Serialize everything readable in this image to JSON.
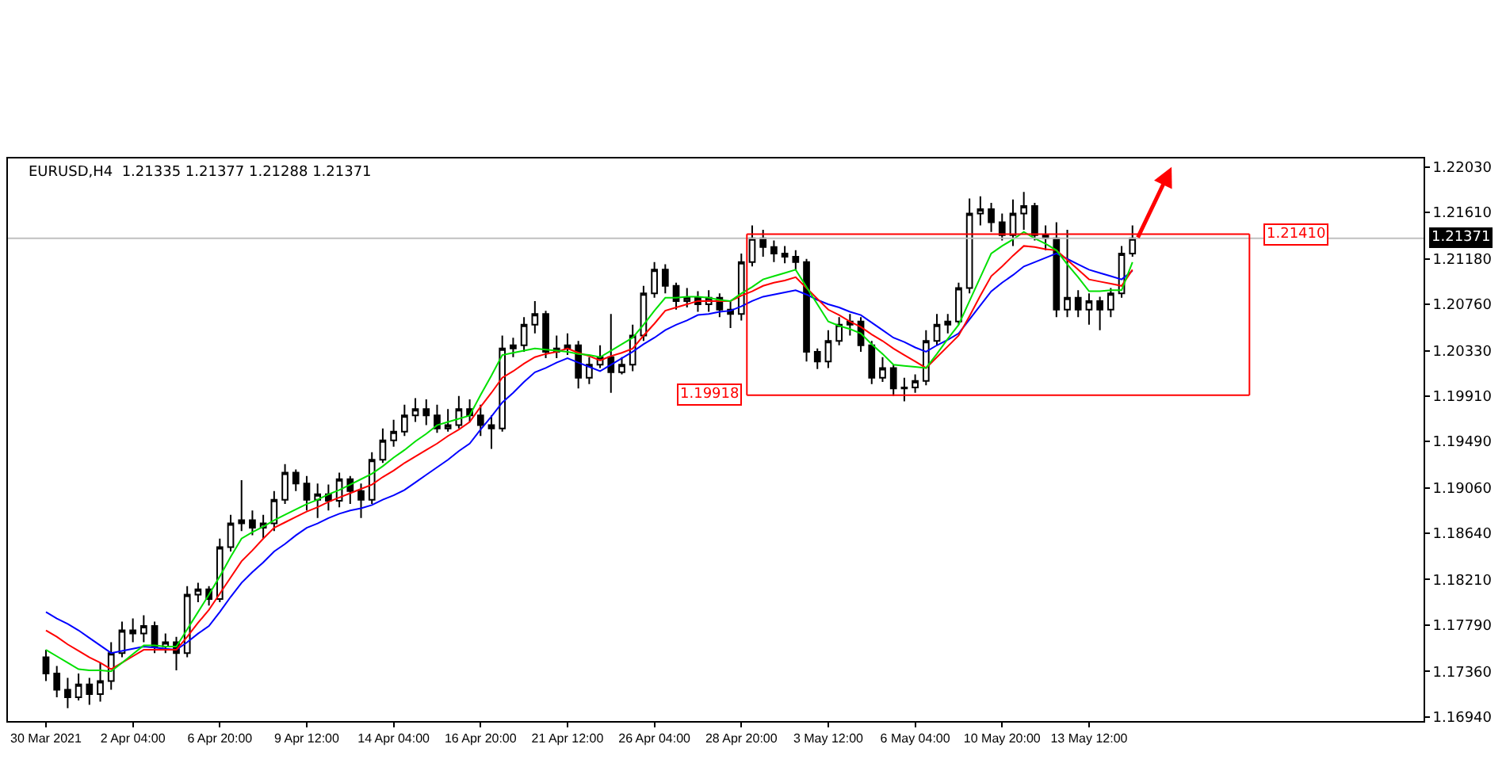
{
  "chart_data": {
    "type": "candlestick",
    "title": "EURUSD,H4  1.21335 1.21377 1.21288 1.21371",
    "categories": [
      "30 Mar 2021",
      null,
      null,
      null,
      null,
      null,
      null,
      null,
      "2 Apr 04:00",
      null,
      null,
      null,
      null,
      null,
      null,
      null,
      "6 Apr 20:00",
      null,
      null,
      null,
      null,
      null,
      null,
      null,
      "9 Apr 12:00",
      null,
      null,
      null,
      null,
      null,
      null,
      null,
      "14 Apr 04:00",
      null,
      null,
      null,
      null,
      null,
      null,
      null,
      "16 Apr 20:00",
      null,
      null,
      null,
      null,
      null,
      null,
      null,
      "21 Apr 12:00",
      null,
      null,
      null,
      null,
      null,
      null,
      null,
      "26 Apr 04:00",
      null,
      null,
      null,
      null,
      null,
      null,
      null,
      "28 Apr 20:00",
      null,
      null,
      null,
      null,
      null,
      null,
      null,
      "3 May 12:00",
      null,
      null,
      null,
      null,
      null,
      null,
      null,
      "6 May 04:00",
      null,
      null,
      null,
      null,
      null,
      null,
      null,
      "10 May 20:00",
      null,
      null,
      null,
      null,
      null,
      null,
      null,
      "13 May 12:00",
      null,
      null,
      null,
      null
    ],
    "ohlc": [
      [
        1.1749,
        1.1756,
        1.1727,
        1.1734
      ],
      [
        1.1734,
        1.1741,
        1.1712,
        1.1719
      ],
      [
        1.1719,
        1.173,
        1.1702,
        1.1712
      ],
      [
        1.1712,
        1.1734,
        1.1709,
        1.1724
      ],
      [
        1.1724,
        1.173,
        1.1705,
        1.1715
      ],
      [
        1.1715,
        1.1744,
        1.1708,
        1.1727
      ],
      [
        1.1727,
        1.1763,
        1.1719,
        1.1753
      ],
      [
        1.1753,
        1.1782,
        1.1749,
        1.1774
      ],
      [
        1.1774,
        1.1785,
        1.1763,
        1.1771
      ],
      [
        1.1771,
        1.1788,
        1.1763,
        1.1778
      ],
      [
        1.1778,
        1.1782,
        1.1753,
        1.1759
      ],
      [
        1.1759,
        1.1771,
        1.1753,
        1.1763
      ],
      [
        1.1763,
        1.1768,
        1.1737,
        1.1753
      ],
      [
        1.1753,
        1.1815,
        1.1749,
        1.1807
      ],
      [
        1.1807,
        1.1818,
        1.18,
        1.1812
      ],
      [
        1.1812,
        1.1815,
        1.1797,
        1.1803
      ],
      [
        1.1803,
        1.1859,
        1.18,
        1.1851
      ],
      [
        1.1851,
        1.1881,
        1.1847,
        1.1873
      ],
      [
        1.1873,
        1.1913,
        1.1866,
        1.1876
      ],
      [
        1.1876,
        1.1885,
        1.1862,
        1.1869
      ],
      [
        1.1869,
        1.1881,
        1.1859,
        1.1873
      ],
      [
        1.1873,
        1.1903,
        1.1866,
        1.1895
      ],
      [
        1.1895,
        1.1928,
        1.1891,
        1.192
      ],
      [
        1.192,
        1.1923,
        1.1903,
        1.191
      ],
      [
        1.191,
        1.1917,
        1.1885,
        1.1895
      ],
      [
        1.1895,
        1.191,
        1.1878,
        1.19
      ],
      [
        1.19,
        1.1909,
        1.1885,
        1.1894
      ],
      [
        1.1894,
        1.192,
        1.1888,
        1.1914
      ],
      [
        1.1914,
        1.1917,
        1.1891,
        1.1903
      ],
      [
        1.1903,
        1.191,
        1.1878,
        1.1895
      ],
      [
        1.1895,
        1.1939,
        1.1891,
        1.1932
      ],
      [
        1.1932,
        1.1961,
        1.1929,
        1.195
      ],
      [
        1.195,
        1.1969,
        1.1944,
        1.1958
      ],
      [
        1.1958,
        1.1983,
        1.1954,
        1.1973
      ],
      [
        1.1973,
        1.1989,
        1.1967,
        1.1979
      ],
      [
        1.1979,
        1.1988,
        1.1964,
        1.1973
      ],
      [
        1.1973,
        1.1983,
        1.1957,
        1.1961
      ],
      [
        1.1961,
        1.1979,
        1.1958,
        1.1964
      ],
      [
        1.1964,
        1.1991,
        1.1961,
        1.1979
      ],
      [
        1.1979,
        1.1988,
        1.1967,
        1.1973
      ],
      [
        1.1973,
        1.1983,
        1.1954,
        1.1964
      ],
      [
        1.1964,
        1.1973,
        1.1942,
        1.1961
      ],
      [
        1.1961,
        1.2047,
        1.1958,
        1.2035
      ],
      [
        1.2035,
        1.2045,
        1.2027,
        1.2038
      ],
      [
        1.2038,
        1.2064,
        1.2032,
        1.2057
      ],
      [
        1.2057,
        1.2079,
        1.2049,
        1.2067
      ],
      [
        1.2067,
        1.207,
        1.2026,
        1.2032
      ],
      [
        1.2032,
        1.2047,
        1.2026,
        1.2035
      ],
      [
        1.2035,
        1.2049,
        1.2029,
        1.2038
      ],
      [
        1.2038,
        1.2042,
        1.1998,
        1.2008
      ],
      [
        1.2008,
        1.2027,
        1.2002,
        1.202
      ],
      [
        1.202,
        1.2038,
        1.2017,
        1.2027
      ],
      [
        1.2027,
        1.2067,
        1.1994,
        1.2013
      ],
      [
        1.2013,
        1.2027,
        1.2011,
        1.202
      ],
      [
        1.202,
        1.2057,
        1.2014,
        1.2047
      ],
      [
        1.2047,
        1.2093,
        1.2042,
        1.2086
      ],
      [
        1.2086,
        1.2115,
        1.2082,
        1.2108
      ],
      [
        1.2108,
        1.2113,
        1.2086,
        1.2093
      ],
      [
        1.2093,
        1.2096,
        1.2071,
        1.2079
      ],
      [
        1.2079,
        1.2091,
        1.2073,
        1.2082
      ],
      [
        1.2082,
        1.2088,
        1.2069,
        1.2076
      ],
      [
        1.2076,
        1.2089,
        1.2069,
        1.2082
      ],
      [
        1.2082,
        1.2086,
        1.2064,
        1.2071
      ],
      [
        1.2071,
        1.2079,
        1.2054,
        1.2067
      ],
      [
        1.2067,
        1.2123,
        1.2061,
        1.2115
      ],
      [
        1.2115,
        1.2149,
        1.2111,
        1.2137
      ],
      [
        1.2137,
        1.2145,
        1.212,
        1.2129
      ],
      [
        1.2129,
        1.2135,
        1.2115,
        1.2123
      ],
      [
        1.2123,
        1.213,
        1.2114,
        1.212
      ],
      [
        1.212,
        1.2126,
        1.2108,
        1.2115
      ],
      [
        1.2115,
        1.2118,
        1.2023,
        1.2032
      ],
      [
        1.2032,
        1.2035,
        1.2016,
        1.2023
      ],
      [
        1.2023,
        1.2052,
        1.2017,
        1.2042
      ],
      [
        1.2042,
        1.2064,
        1.2038,
        1.2057
      ],
      [
        1.2057,
        1.2067,
        1.2047,
        1.206
      ],
      [
        1.206,
        1.2064,
        1.2032,
        1.2038
      ],
      [
        1.2038,
        1.2042,
        1.2002,
        1.2008
      ],
      [
        1.2008,
        1.2027,
        1.2004,
        1.2017
      ],
      [
        1.2017,
        1.202,
        1.1991,
        1.1998
      ],
      [
        1.1998,
        1.2008,
        1.1986,
        1.1999
      ],
      [
        1.1999,
        1.2011,
        1.1994,
        1.2005
      ],
      [
        1.2005,
        1.2052,
        1.2001,
        1.2042
      ],
      [
        1.2042,
        1.2067,
        1.2038,
        1.2057
      ],
      [
        1.2057,
        1.2067,
        1.2049,
        1.206
      ],
      [
        1.206,
        1.2096,
        1.2057,
        1.2091
      ],
      [
        1.2091,
        1.2174,
        1.2086,
        1.216
      ],
      [
        1.216,
        1.2176,
        1.2149,
        1.2164
      ],
      [
        1.2164,
        1.217,
        1.2143,
        1.2152
      ],
      [
        1.2152,
        1.216,
        1.2135,
        1.214
      ],
      [
        1.214,
        1.2173,
        1.213,
        1.216
      ],
      [
        1.216,
        1.218,
        1.2145,
        1.2167
      ],
      [
        1.2167,
        1.217,
        1.2135,
        1.214
      ],
      [
        1.214,
        1.2149,
        1.2126,
        1.2137
      ],
      [
        1.2137,
        1.2152,
        1.2064,
        1.2071
      ],
      [
        1.2071,
        1.2145,
        1.2064,
        1.2082
      ],
      [
        1.2082,
        1.2089,
        1.2064,
        1.2071
      ],
      [
        1.2071,
        1.2086,
        1.2057,
        1.2079
      ],
      [
        1.2079,
        1.2083,
        1.2052,
        1.2071
      ],
      [
        1.2071,
        1.2091,
        1.2064,
        1.2086
      ],
      [
        1.2086,
        1.213,
        1.2082,
        1.2123
      ],
      [
        1.2123,
        1.2149,
        1.212,
        1.2137
      ]
    ],
    "series": [
      {
        "type": "line",
        "color": "#0000ff",
        "values": [
          1.1791,
          1.1785,
          1.178,
          1.1774,
          1.1767,
          1.176,
          1.1753,
          1.1755,
          1.1757,
          1.1759,
          1.1758,
          1.1757,
          1.1756,
          1.1763,
          1.1771,
          1.1778,
          1.1791,
          1.1805,
          1.1818,
          1.1828,
          1.1837,
          1.1847,
          1.1854,
          1.1862,
          1.1869,
          1.1873,
          1.1878,
          1.1882,
          1.1885,
          1.1887,
          1.189,
          1.1895,
          1.1899,
          1.1904,
          1.1911,
          1.1918,
          1.1925,
          1.1932,
          1.194,
          1.1947,
          1.196,
          1.1972,
          1.1985,
          1.1994,
          1.2004,
          1.2013,
          1.2017,
          1.2022,
          1.2026,
          1.2022,
          1.2018,
          1.2014,
          1.202,
          1.2026,
          1.2032,
          1.2039,
          1.2045,
          1.2052,
          1.2057,
          1.2061,
          1.2066,
          1.2067,
          1.2069,
          1.207,
          1.2074,
          1.2079,
          1.2083,
          1.2085,
          1.2087,
          1.2089,
          1.2085,
          1.208,
          1.2076,
          1.2073,
          1.2069,
          1.2066,
          1.2059,
          1.2052,
          1.2045,
          1.2041,
          1.2036,
          1.2032,
          1.2038,
          1.2043,
          1.2049,
          1.2062,
          1.2075,
          1.2088,
          1.2096,
          1.2103,
          1.2111,
          1.2115,
          1.2119,
          1.2123,
          1.2118,
          1.2113,
          1.2108,
          1.2105,
          1.2102,
          1.2099,
          1.2107
        ]
      },
      {
        "type": "line",
        "color": "#ff0000",
        "values": [
          1.1774,
          1.1768,
          1.1761,
          1.1755,
          1.1749,
          1.1744,
          1.1738,
          1.1744,
          1.175,
          1.1756,
          1.1756,
          1.1756,
          1.1756,
          1.1768,
          1.1781,
          1.1793,
          1.1808,
          1.1823,
          1.1838,
          1.1848,
          1.1859,
          1.1869,
          1.1874,
          1.1879,
          1.1884,
          1.1888,
          1.1893,
          1.1897,
          1.1901,
          1.1905,
          1.1909,
          1.1916,
          1.1922,
          1.1929,
          1.1935,
          1.1941,
          1.1947,
          1.1954,
          1.196,
          1.1967,
          1.1981,
          1.1994,
          1.2008,
          1.2014,
          1.2021,
          1.2027,
          1.203,
          1.2032,
          1.2035,
          1.2031,
          1.2028,
          1.2024,
          1.2028,
          1.2031,
          1.2035,
          1.2047,
          1.2058,
          1.207,
          1.2073,
          1.2076,
          1.2079,
          1.2079,
          1.2079,
          1.2079,
          1.2084,
          1.2088,
          1.2093,
          1.2096,
          1.2098,
          1.2101,
          1.2091,
          1.2081,
          1.2071,
          1.2066,
          1.206,
          1.2055,
          1.2048,
          1.2042,
          1.2035,
          1.2029,
          1.2023,
          1.2017,
          1.2027,
          1.2037,
          1.2047,
          1.2065,
          1.2084,
          1.2102,
          1.2111,
          1.2121,
          1.213,
          1.2129,
          1.2127,
          1.2126,
          1.2117,
          1.2108,
          1.2099,
          1.2097,
          1.2095,
          1.2093,
          1.2108
        ]
      },
      {
        "type": "line",
        "color": "#00e000",
        "values": [
          1.1756,
          1.175,
          1.1744,
          1.1738,
          1.1737,
          1.1737,
          1.1736,
          1.1744,
          1.1752,
          1.176,
          1.176,
          1.1759,
          1.1759,
          1.1775,
          1.1791,
          1.1807,
          1.1824,
          1.1842,
          1.1859,
          1.1865,
          1.187,
          1.1876,
          1.1881,
          1.1886,
          1.1891,
          1.1895,
          1.19,
          1.1904,
          1.1909,
          1.1914,
          1.1919,
          1.1926,
          1.1934,
          1.1941,
          1.1949,
          1.1956,
          1.1964,
          1.1967,
          1.197,
          1.1973,
          1.1992,
          1.201,
          1.2029,
          1.2031,
          1.2033,
          1.2035,
          1.2034,
          1.2033,
          1.2032,
          1.203,
          1.2029,
          1.2027,
          1.2033,
          1.2039,
          1.2045,
          1.2057,
          1.207,
          1.2082,
          1.2082,
          1.2083,
          1.2083,
          1.2082,
          1.208,
          1.2079,
          1.2086,
          1.2092,
          1.2099,
          1.2102,
          1.2105,
          1.2108,
          1.2092,
          1.2076,
          1.206,
          1.2056,
          1.2053,
          1.2049,
          1.2039,
          1.203,
          1.202,
          1.2019,
          1.2018,
          1.2017,
          1.203,
          1.2044,
          1.2057,
          1.2079,
          1.2101,
          1.2123,
          1.213,
          1.2136,
          1.2143,
          1.2137,
          1.2132,
          1.2126,
          1.2113,
          1.2101,
          1.2088,
          1.2088,
          1.2089,
          1.2089,
          1.2115
        ]
      }
    ],
    "ylim": [
      1.169,
      1.2211
    ],
    "yticks": [
      {
        "value": 1.2203,
        "label": "1.22030"
      },
      {
        "value": 1.2161,
        "label": "1.21610"
      },
      {
        "value": 1.2118,
        "label": "1.21180"
      },
      {
        "value": 1.2076,
        "label": "1.20760"
      },
      {
        "value": 1.2033,
        "label": "1.20330"
      },
      {
        "value": 1.1991,
        "label": "1.19910"
      },
      {
        "value": 1.1949,
        "label": "1.19490"
      },
      {
        "value": 1.1906,
        "label": "1.19060"
      },
      {
        "value": 1.1864,
        "label": "1.18640"
      },
      {
        "value": 1.1821,
        "label": "1.18210"
      },
      {
        "value": 1.1779,
        "label": "1.17790"
      },
      {
        "value": 1.1736,
        "label": "1.17360"
      },
      {
        "value": 1.1694,
        "label": "1.16940"
      }
    ],
    "ref_lines": [
      {
        "axis": "y",
        "value": 1.21371,
        "label": "1.21371",
        "color": "#c0c0c0"
      },
      {
        "axis": "y",
        "value": 1.2141,
        "label": "1.21410",
        "color": "#ff0000"
      },
      {
        "axis": "y",
        "value": 1.19918,
        "label": "1.19918",
        "color": "#ff0000"
      }
    ],
    "grid": false,
    "legend": false
  }
}
